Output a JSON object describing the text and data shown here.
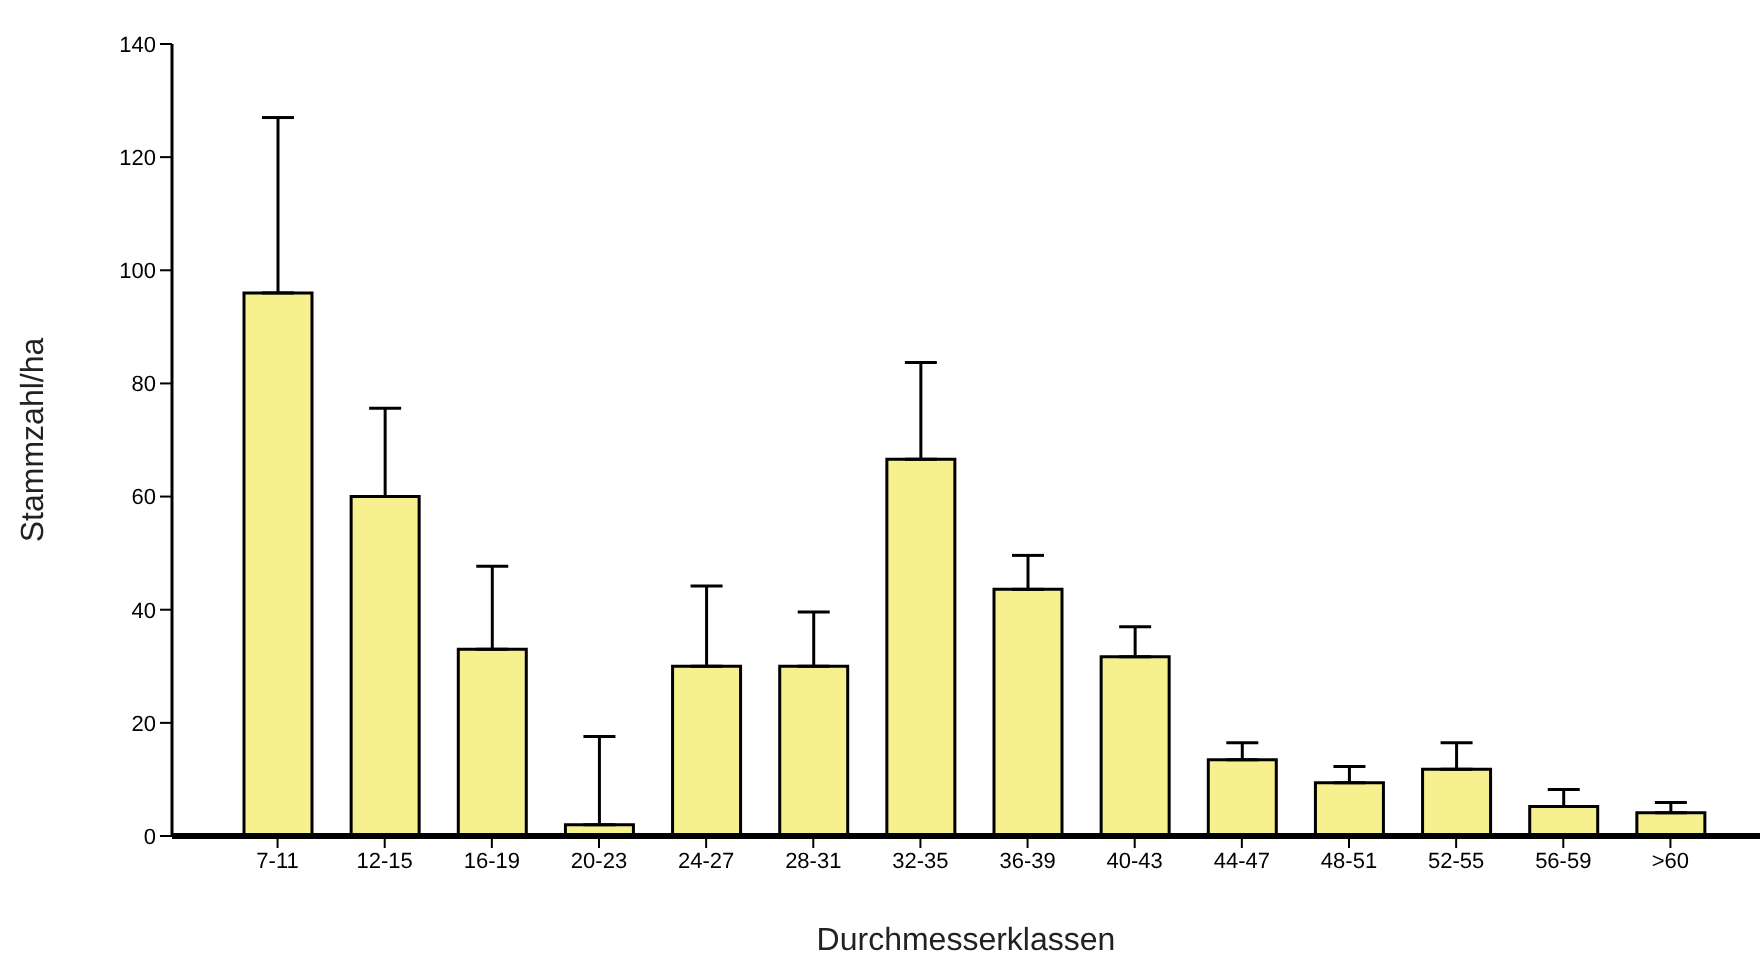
{
  "chart_data": {
    "type": "bar",
    "xlabel": "Durchmesserklassen",
    "ylabel": "Stammzahl/ha",
    "categories": [
      "7-11",
      "12-15",
      "16-19",
      "20-23",
      "24-27",
      "28-31",
      "32-35",
      "36-39",
      "40-43",
      "44-47",
      "48-51",
      "52-55",
      "56-59",
      ">60"
    ],
    "values": [
      96,
      60,
      33,
      2,
      30,
      30,
      66.6,
      43.6,
      31.7,
      13.5,
      9.4,
      11.8,
      5.2,
      4.1
    ],
    "errors": [
      [
        96,
        127
      ],
      [
        60,
        75.6
      ],
      [
        33,
        47.7
      ],
      [
        2,
        17.6
      ],
      [
        30,
        44.2
      ],
      [
        30,
        39.6
      ],
      [
        66.6,
        83.7
      ],
      [
        43.6,
        49.6
      ],
      [
        31.7,
        37
      ],
      [
        13.5,
        16.5
      ],
      [
        9.4,
        12.3
      ],
      [
        11.8,
        16.5
      ],
      [
        5.2,
        8.2
      ],
      [
        4.1,
        5.9
      ]
    ],
    "color": "#f7f08e",
    "ylim": [
      0,
      140
    ],
    "yticks": [
      0,
      20,
      40,
      60,
      80,
      100,
      120,
      140
    ]
  }
}
